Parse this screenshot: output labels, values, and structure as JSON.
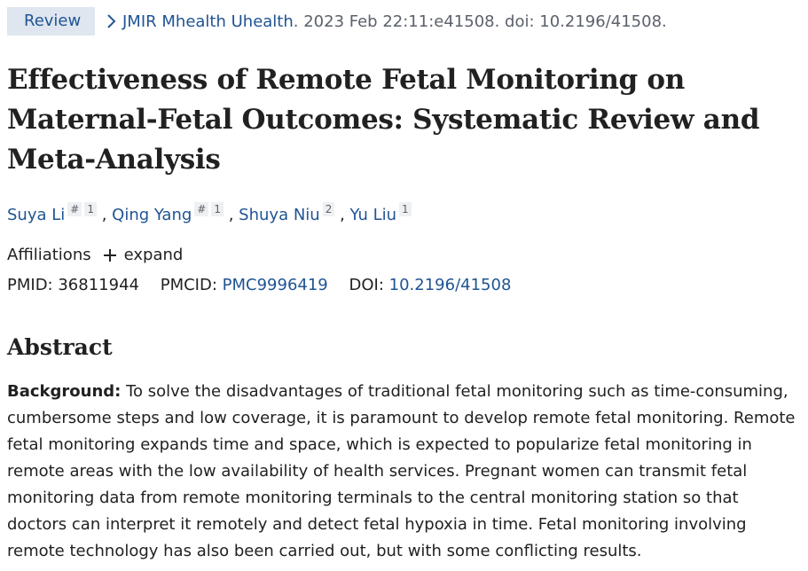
{
  "citation": {
    "badge": "Review",
    "journal": "JMIR Mhealth Uhealth",
    "rest": ". 2023 Feb 22:11:e41508. doi: 10.2196/41508."
  },
  "title": "Effectiveness of Remote Fetal Monitoring on Maternal-Fetal Outcomes: Systematic Review and Meta-Analysis",
  "authors": [
    {
      "name": "Suya Li",
      "marks": [
        "#",
        "1"
      ]
    },
    {
      "name": "Qing Yang",
      "marks": [
        "#",
        "1"
      ]
    },
    {
      "name": "Shuya Niu",
      "marks": [
        "2"
      ]
    },
    {
      "name": "Yu Liu",
      "marks": [
        "1"
      ]
    }
  ],
  "affiliations": {
    "label": "Affiliations",
    "expand_label": "expand"
  },
  "ids": {
    "pmid_label": "PMID:",
    "pmid": "36811944",
    "pmcid_label": "PMCID:",
    "pmcid": "PMC9996419",
    "doi_label": "DOI:",
    "doi": "10.2196/41508"
  },
  "abstract": {
    "heading": "Abstract",
    "background_label": "Background:",
    "background_text": " To solve the disadvantages of traditional fetal monitoring such as time-consuming, cumbersome steps and low coverage, it is paramount to develop remote fetal monitoring. Remote fetal monitoring expands time and space, which is expected to popularize fetal monitoring in remote areas with the low availability of health services. Pregnant women can transmit fetal monitoring data from remote monitoring terminals to the central monitoring station so that doctors can interpret it remotely and detect fetal hypoxia in time. Fetal monitoring involving remote technology has also been carried out, but with some conflicting results."
  },
  "icons": {
    "chevron": "chevron-right-icon",
    "expand": "plus-icon"
  },
  "colors": {
    "link": "#205493",
    "badge_bg": "#dfe6ef",
    "muted": "#5b616b"
  }
}
